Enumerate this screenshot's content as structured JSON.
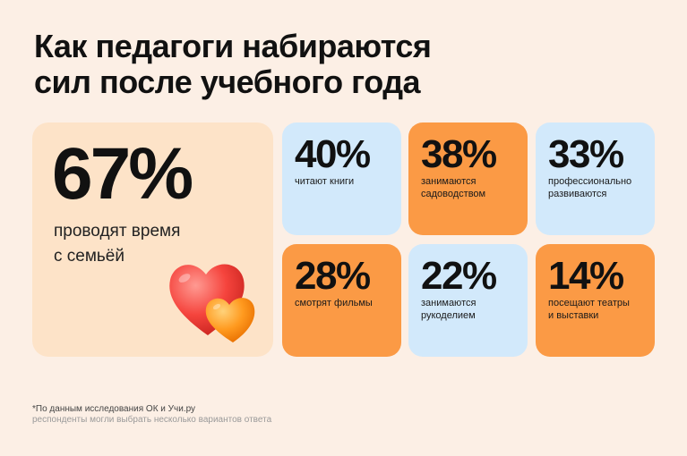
{
  "title": {
    "line1": "Как педагоги набираются",
    "line2": "сил после учебного года"
  },
  "main_stat": {
    "percent": "67%",
    "desc_line1": "проводят время",
    "desc_line2": "с семьёй",
    "icon": "hearts-icon"
  },
  "stats": [
    {
      "percent": "40%",
      "line1": "читают книги",
      "line2": "",
      "color": "#d2e9fb"
    },
    {
      "percent": "38%",
      "line1": "занимаются",
      "line2": "садоводством",
      "color": "#fb9a45"
    },
    {
      "percent": "33%",
      "line1": "профессионально",
      "line2": "развиваются",
      "color": "#d2e9fb"
    },
    {
      "percent": "28%",
      "line1": "смотрят фильмы",
      "line2": "",
      "color": "#fb9a45"
    },
    {
      "percent": "22%",
      "line1": "занимаются",
      "line2": "рукоделием",
      "color": "#d2e9fb"
    },
    {
      "percent": "14%",
      "line1": "посещают театры",
      "line2": "и выставки",
      "color": "#fb9a45"
    }
  ],
  "footnote": {
    "line1": "*По данным исследования ОК и Учи.ру",
    "line2": "респонденты могли выбрать несколько вариантов ответа"
  }
}
